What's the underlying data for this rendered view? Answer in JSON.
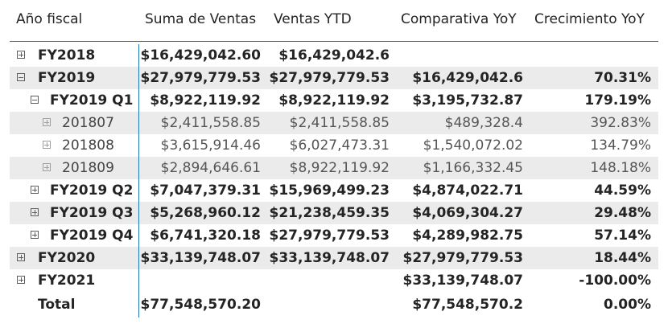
{
  "headers": {
    "year": "Año fiscal",
    "sales": "Suma de Ventas",
    "ytd": "Ventas YTD",
    "yoy": "Comparativa YoY",
    "growth": "Crecimiento YoY"
  },
  "rows": [
    {
      "label": "FY2018",
      "sales": "$16,429,042.60",
      "ytd": "$16,429,042.6",
      "yoy": "",
      "growth": ""
    },
    {
      "label": "FY2019",
      "sales": "$27,979,779.53",
      "ytd": "$27,979,779.53",
      "yoy": "$16,429,042.6",
      "growth": "70.31%"
    },
    {
      "label": "FY2019 Q1",
      "sales": "$8,922,119.92",
      "ytd": "$8,922,119.92",
      "yoy": "$3,195,732.87",
      "growth": "179.19%"
    },
    {
      "label": "201807",
      "sales": "$2,411,558.85",
      "ytd": "$2,411,558.85",
      "yoy": "$489,328.4",
      "growth": "392.83%"
    },
    {
      "label": "201808",
      "sales": "$3,615,914.46",
      "ytd": "$6,027,473.31",
      "yoy": "$1,540,072.02",
      "growth": "134.79%"
    },
    {
      "label": "201809",
      "sales": "$2,894,646.61",
      "ytd": "$8,922,119.92",
      "yoy": "$1,166,332.45",
      "growth": "148.18%"
    },
    {
      "label": "FY2019 Q2",
      "sales": "$7,047,379.31",
      "ytd": "$15,969,499.23",
      "yoy": "$4,874,022.71",
      "growth": "44.59%"
    },
    {
      "label": "FY2019 Q3",
      "sales": "$5,268,960.12",
      "ytd": "$21,238,459.35",
      "yoy": "$4,069,304.27",
      "growth": "29.48%"
    },
    {
      "label": "FY2019 Q4",
      "sales": "$6,741,320.18",
      "ytd": "$27,979,779.53",
      "yoy": "$4,289,982.75",
      "growth": "57.14%"
    },
    {
      "label": "FY2020",
      "sales": "$33,139,748.07",
      "ytd": "$33,139,748.07",
      "yoy": "$27,979,779.53",
      "growth": "18.44%"
    },
    {
      "label": "FY2021",
      "sales": "",
      "ytd": "",
      "yoy": "$33,139,748.07",
      "growth": "-100.00%"
    },
    {
      "label": "Total",
      "sales": "$77,548,570.20",
      "ytd": "",
      "yoy": "$77,548,570.2",
      "growth": "0.00%"
    }
  ],
  "icons": {
    "expand": "plus-square-icon",
    "collapse": "minus-square-icon"
  },
  "colors": {
    "accent_line": "#1f78b4",
    "row_shade": "#ebebeb",
    "text": "#252423"
  }
}
